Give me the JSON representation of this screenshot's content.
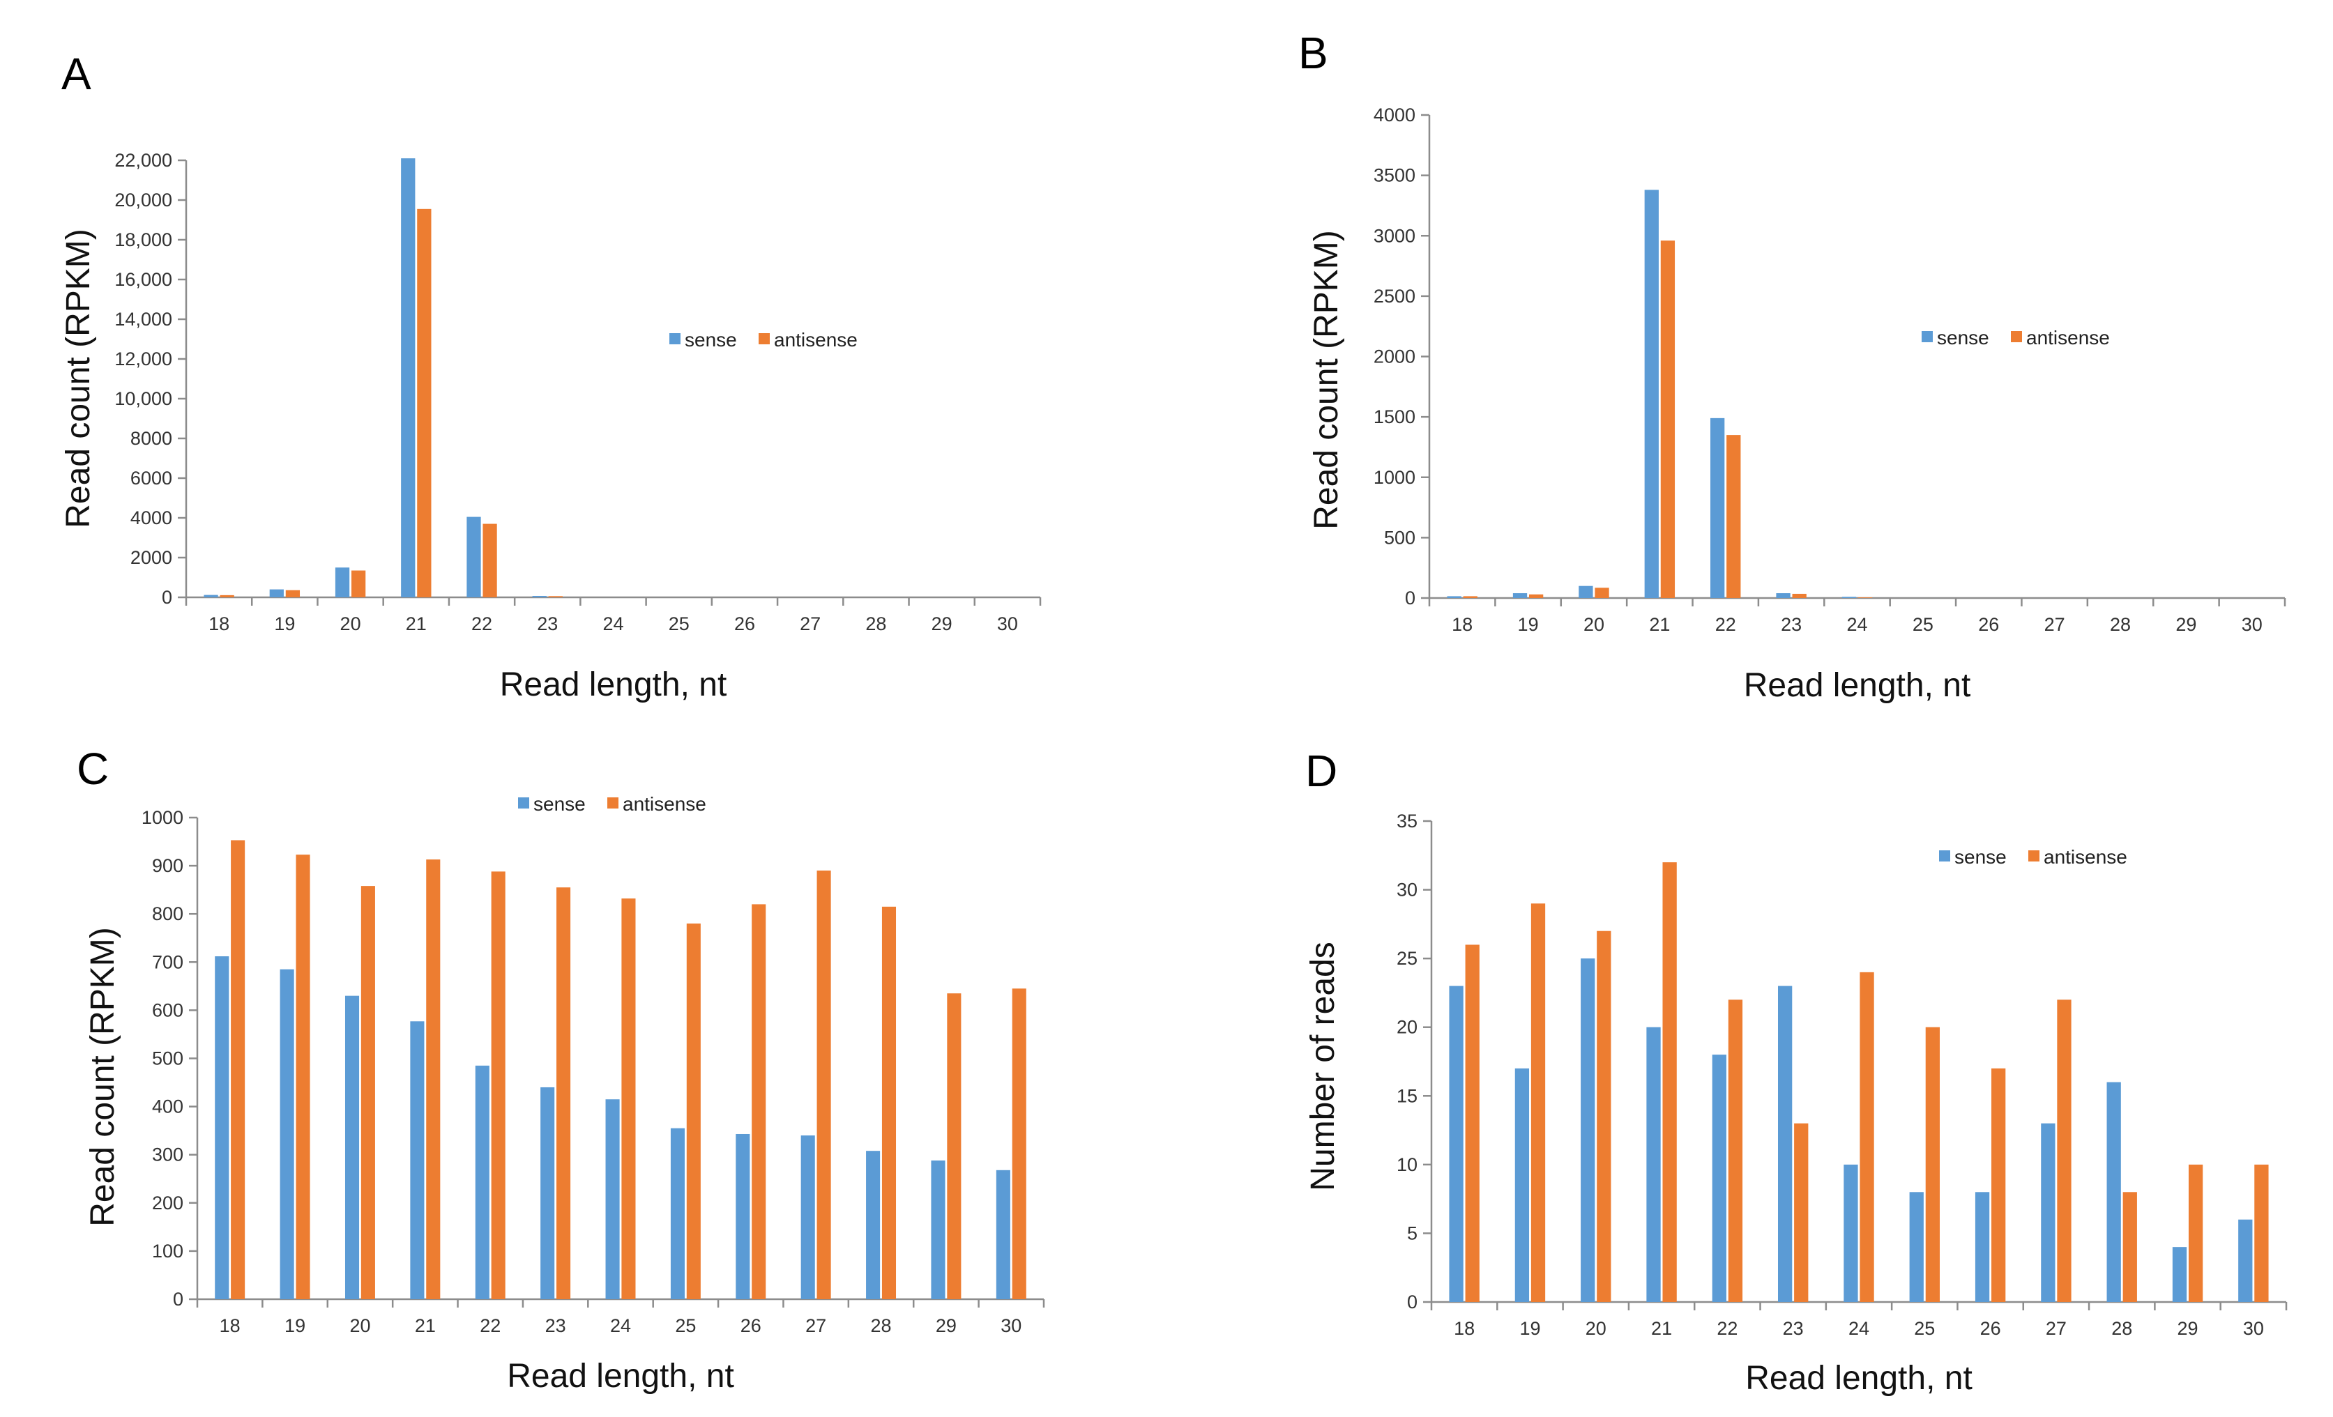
{
  "colors": {
    "sense": "#5B9BD5",
    "antisense": "#ED7D31"
  },
  "chart_data": [
    {
      "panel": "A",
      "type": "bar",
      "categories": [
        "18",
        "19",
        "20",
        "21",
        "22",
        "23",
        "24",
        "25",
        "26",
        "27",
        "28",
        "29",
        "30"
      ],
      "series": [
        {
          "name": "sense",
          "values": [
            120,
            400,
            1500,
            22100,
            4050,
            70,
            0,
            0,
            0,
            0,
            0,
            0,
            0
          ]
        },
        {
          "name": "antisense",
          "values": [
            110,
            360,
            1350,
            19550,
            3700,
            60,
            0,
            0,
            0,
            0,
            0,
            0,
            0
          ]
        }
      ],
      "ylim": [
        0,
        22000
      ],
      "yticks": [
        "0",
        "2000",
        "4000",
        "6000",
        "8000",
        "10,000",
        "12,000",
        "14,000",
        "16,000",
        "18,000",
        "20,000",
        "22,000"
      ],
      "xlabel": "Read length, nt",
      "ylabel": "Read count (RPKM)",
      "legend": "center-right"
    },
    {
      "panel": "B",
      "type": "bar",
      "categories": [
        "18",
        "19",
        "20",
        "21",
        "22",
        "23",
        "24",
        "25",
        "26",
        "27",
        "28",
        "29",
        "30"
      ],
      "series": [
        {
          "name": "sense",
          "values": [
            15,
            40,
            100,
            3380,
            1490,
            40,
            10,
            0,
            0,
            0,
            0,
            0,
            0
          ]
        },
        {
          "name": "antisense",
          "values": [
            15,
            30,
            85,
            2960,
            1350,
            35,
            5,
            0,
            0,
            0,
            0,
            0,
            0
          ]
        }
      ],
      "ylim": [
        0,
        4000
      ],
      "yticks": [
        "0",
        "500",
        "1000",
        "1500",
        "2000",
        "2500",
        "3000",
        "3500",
        "4000"
      ],
      "xlabel": "Read length, nt",
      "ylabel": "Read count (RPKM)",
      "legend": "center-right"
    },
    {
      "panel": "C",
      "type": "bar",
      "categories": [
        "18",
        "19",
        "20",
        "21",
        "22",
        "23",
        "24",
        "25",
        "26",
        "27",
        "28",
        "29",
        "30"
      ],
      "series": [
        {
          "name": "sense",
          "values": [
            712,
            685,
            630,
            577,
            485,
            440,
            415,
            355,
            343,
            340,
            308,
            288,
            268
          ]
        },
        {
          "name": "antisense",
          "values": [
            953,
            923,
            858,
            913,
            888,
            855,
            832,
            780,
            820,
            890,
            815,
            635,
            645
          ]
        }
      ],
      "ylim": [
        0,
        1000
      ],
      "yticks": [
        "0",
        "100",
        "200",
        "300",
        "400",
        "500",
        "600",
        "700",
        "800",
        "900",
        "1000"
      ],
      "xlabel": "Read length, nt",
      "ylabel": "Read count (RPKM)",
      "legend": "top-center"
    },
    {
      "panel": "D",
      "type": "bar",
      "categories": [
        "18",
        "19",
        "20",
        "21",
        "22",
        "23",
        "24",
        "25",
        "26",
        "27",
        "28",
        "29",
        "30"
      ],
      "series": [
        {
          "name": "sense",
          "values": [
            23,
            17,
            25,
            20,
            18,
            23,
            10,
            8,
            8,
            13,
            16,
            4,
            6
          ]
        },
        {
          "name": "antisense",
          "values": [
            26,
            29,
            27,
            32,
            22,
            13,
            24,
            20,
            17,
            22,
            8,
            10,
            10
          ]
        }
      ],
      "ylim": [
        0,
        35
      ],
      "yticks": [
        "0",
        "5",
        "10",
        "15",
        "20",
        "25",
        "30",
        "35"
      ],
      "xlabel": "Read length, nt",
      "ylabel": "Number of reads",
      "legend": "top-center"
    }
  ]
}
